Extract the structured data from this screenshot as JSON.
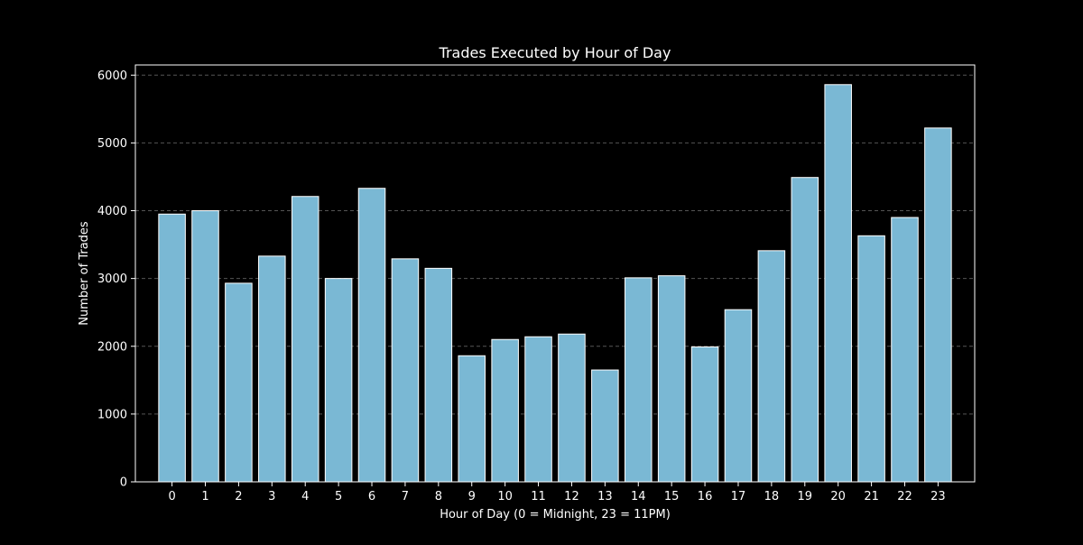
{
  "chart_data": {
    "type": "bar",
    "title": "Trades Executed by Hour of Day",
    "xlabel": "Hour of Day (0 = Midnight, 23 = 11PM)",
    "ylabel": "Number of Trades",
    "categories": [
      "0",
      "1",
      "2",
      "3",
      "4",
      "5",
      "6",
      "7",
      "8",
      "9",
      "10",
      "11",
      "12",
      "13",
      "14",
      "15",
      "16",
      "17",
      "18",
      "19",
      "20",
      "21",
      "22",
      "23"
    ],
    "values": [
      3950,
      4000,
      2930,
      3330,
      4210,
      3000,
      4330,
      3290,
      3150,
      1860,
      2100,
      2140,
      2180,
      1650,
      3010,
      3040,
      1990,
      2540,
      3410,
      4490,
      5860,
      3630,
      3900,
      5220
    ],
    "ylim": [
      0,
      6150
    ],
    "yticks": [
      0,
      1000,
      2000,
      3000,
      4000,
      5000,
      6000
    ],
    "grid": {
      "y": true,
      "x": false
    },
    "colors": {
      "background": "#000000",
      "bar_fill": "#7ab8d4",
      "bar_edge": "#ffffff",
      "grid": "#555555",
      "axis": "#ffffff",
      "text": "#ffffff"
    }
  }
}
